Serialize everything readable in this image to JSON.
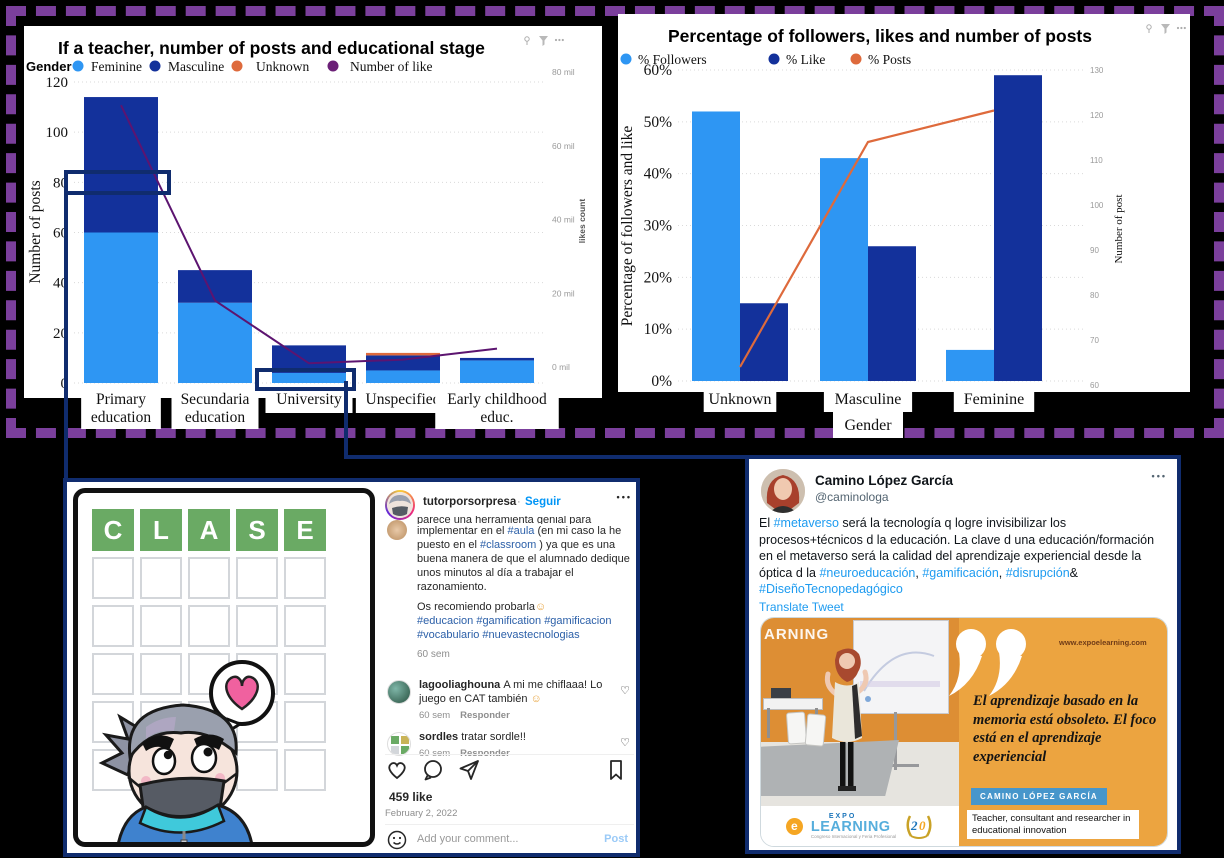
{
  "style": {
    "background": "#000000",
    "purple_dash": "#7B3F9C",
    "navy_connector": "#102C6E",
    "feminine_blue": "#2E96F3",
    "masculine_navy": "#13319B",
    "unknown_orange": "#DE6A3C",
    "like_purple": "#6B2077"
  },
  "chart_data": [
    {
      "id": "teacher_posts",
      "type": "bar",
      "subtype": "stacked-bar-with-line",
      "title": "If a teacher, number of posts and educational stage",
      "legend_title": "Gender",
      "legend_position": "top",
      "grid": true,
      "categories": [
        "Primary education",
        "Secundaria education",
        "University",
        "Unspecified",
        "Early childhood educ."
      ],
      "category_lines": [
        [
          "Primary",
          "education"
        ],
        [
          "Secundaria",
          "education"
        ],
        [
          "University"
        ],
        [
          "Unspecified"
        ],
        [
          "Early childhood",
          "educ."
        ]
      ],
      "series": [
        {
          "name": "Feminine",
          "type": "bar",
          "color": "#2E96F3",
          "values": [
            60,
            32,
            4,
            5,
            9
          ]
        },
        {
          "name": "Masculine",
          "type": "bar",
          "color": "#13319B",
          "values": [
            54,
            13,
            11,
            6,
            1
          ]
        },
        {
          "name": "Unknown",
          "type": "bar",
          "color": "#DE6A3C",
          "values": [
            0,
            0,
            0,
            1,
            0
          ]
        },
        {
          "name": "Number of like",
          "type": "line",
          "axis": "right",
          "color": "#5C1470",
          "values": [
            71,
            18,
            1,
            2,
            5
          ]
        }
      ],
      "xlabel": "",
      "ylabel": "Number of posts",
      "ylim": [
        0,
        120
      ],
      "yticks": [
        0,
        20,
        40,
        60,
        80,
        100,
        120
      ],
      "y2label": "likes count",
      "y2lim": [
        0,
        80
      ],
      "y2ticks": [
        0,
        20,
        40,
        60,
        80
      ],
      "y2tick_suffix": " mil"
    },
    {
      "id": "followers_likes_posts",
      "type": "bar",
      "subtype": "grouped-bar-with-line",
      "title": "Percentage of followers, likes and number of posts",
      "legend_position": "top",
      "grid": true,
      "categories": [
        "Unknown",
        "Masculine",
        "Feminine"
      ],
      "series": [
        {
          "name": "% Followers",
          "type": "bar",
          "color": "#2E96F3",
          "values": [
            52,
            43,
            6
          ]
        },
        {
          "name": "% Like",
          "type": "bar",
          "color": "#13319B",
          "values": [
            15,
            26,
            59
          ]
        },
        {
          "name": "% Posts",
          "type": "line",
          "axis": "right",
          "color": "#DE6A3C",
          "values": [
            64,
            114,
            121
          ]
        }
      ],
      "xlabel": "Gender",
      "ylabel": "Percentage of followers and like",
      "ylim": [
        0,
        60
      ],
      "yticks": [
        0,
        10,
        20,
        30,
        40,
        50,
        60
      ],
      "ytick_suffix": "%",
      "y2label": "Number of post",
      "y2lim": [
        60,
        130
      ],
      "y2ticks": [
        60,
        70,
        80,
        90,
        100,
        110,
        120,
        130
      ]
    }
  ],
  "instagram": {
    "username": "tutorporsorpresa",
    "separator": "·",
    "follow_label": "Seguir",
    "more_label": "•••",
    "wordle": {
      "letters": [
        "C",
        "L",
        "A",
        "S",
        "E"
      ],
      "rows": 6,
      "cols": 5
    },
    "caption": {
      "truncated_first_line": "parece una herramienta genial para",
      "body_segments": [
        {
          "t": "implementar en el "
        },
        {
          "t": "#aula",
          "link": true
        },
        {
          "t": " (en mi caso la he puesto en el "
        },
        {
          "t": "#classroom",
          "link": true
        },
        {
          "t": " ) ya que es una buena manera de que el alumnado dedique unos minutos al día a trabajar el razonamiento."
        }
      ],
      "recommend_line": "Os recomiendo probarla",
      "recommend_emoji": "☺",
      "hashtags": "#educacion #gamification #gamificacion #vocabulario #nuevastecnologias",
      "age": "60 sem"
    },
    "comments": [
      {
        "user": "lagooliaghouna",
        "text": "A mi me chiflaaa! Lo juego en CAT también ",
        "emoji": "☺",
        "age": "60 sem",
        "reply_label": "Responder"
      },
      {
        "user": "sordles",
        "text": "tratar sordle!!",
        "emoji": "",
        "age": "60 sem",
        "reply_label": "Responder"
      }
    ],
    "likes": "459 like",
    "date": "February 2, 2022",
    "comment_placeholder": "Add your comment...",
    "post_label": "Post"
  },
  "tweet": {
    "name": "Camino López García",
    "handle": "@caminologa",
    "more_label": "•••",
    "body_segments": [
      {
        "t": "El "
      },
      {
        "t": "#metaverso",
        "link": true
      },
      {
        "t": " será la tecnología q logre invisibilizar los procesos+técnicos d la educación. La clave d una educación/formación en el metaverso será la calidad del aprendizaje experiencial desde la óptica d la "
      },
      {
        "t": "#neuroeducación",
        "link": true
      },
      {
        "t": ", "
      },
      {
        "t": "#gamificación",
        "link": true
      },
      {
        "t": ", "
      },
      {
        "t": "#disrupción",
        "link": true
      },
      {
        "t": "& "
      },
      {
        "t": "#DiseñoTecnopedagógico",
        "link": true
      }
    ],
    "translate_label": "Translate Tweet",
    "image": {
      "wall_text": "ARNING",
      "website": "www.expoelearning.com",
      "quote": "El aprendizaje basado en la memoria está obsoleto. El foco está en el aprendizaje experiencial",
      "speaker_label": "CAMINO LÓPEZ GARCÍA",
      "speaker_desc": "Teacher, consultant and researcher in educational innovation",
      "logo": {
        "e": "e",
        "expo": "EXPO",
        "learning": "LEARNING",
        "tagline": "Congreso Internacional y Feria Profesional",
        "anniversary": "20"
      }
    }
  }
}
